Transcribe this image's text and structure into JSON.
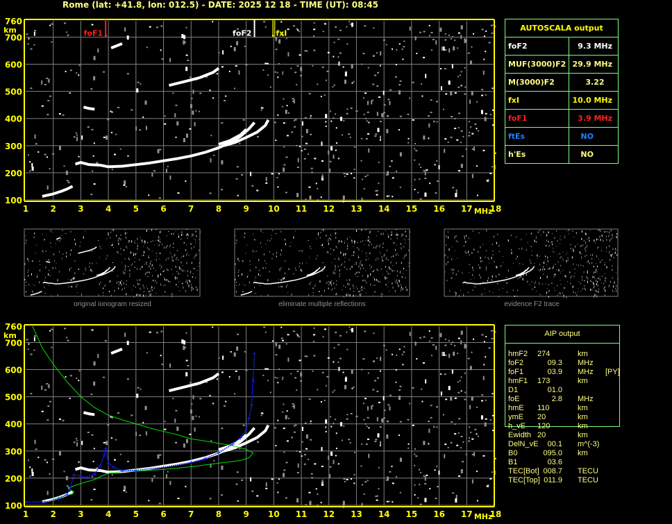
{
  "header": {
    "title": "Rome (lat: +41.8, lon: 012.5) - DATE: 2025 12 18 - TIME (UT): 08:45"
  },
  "autoscala": {
    "title": "AUTOSCALA output",
    "rows": [
      {
        "label": "foF2",
        "value": "9.3 MHz",
        "color": "#ffffff"
      },
      {
        "label": "MUF(3000)F2",
        "value": "29.9 MHz",
        "color": "#ffff80"
      },
      {
        "label": "M(3000)F2",
        "value": "3.22",
        "color": "#ffff80"
      },
      {
        "label": "fxI",
        "value": "10.0 MHz",
        "color": "#ffff00"
      },
      {
        "label": "foF1",
        "value": "3.9 MHz",
        "color": "#ff2020"
      },
      {
        "label": "ftEs",
        "value": "NO",
        "color": "#1e7fff",
        "value_color": "#1e7fff"
      },
      {
        "label": "h'Es",
        "value": "NO",
        "color": "#ffff80"
      }
    ]
  },
  "aip": {
    "title": "AIP output",
    "rows": [
      {
        "name": "hmF2",
        "value": "274",
        "unit": "km",
        "note": ""
      },
      {
        "name": "foF2",
        "value": "09.3",
        "unit": "MHz",
        "note": ""
      },
      {
        "name": "foF1",
        "value": "03.9",
        "unit": "MHz",
        "note": "[PY]"
      },
      {
        "name": "hmF1",
        "value": "173",
        "unit": "km",
        "note": ""
      },
      {
        "name": "D1",
        "value": "01.0",
        "unit": "",
        "note": ""
      },
      {
        "name": "foE",
        "value": "2.8",
        "unit": "MHz",
        "note": ""
      },
      {
        "name": "hmE",
        "value": "110",
        "unit": "km",
        "note": ""
      },
      {
        "name": "ymE",
        "value": "20",
        "unit": "km",
        "note": ""
      },
      {
        "name": "h_vE",
        "value": "120",
        "unit": "km",
        "note": ""
      },
      {
        "name": "Ewidth",
        "value": "20",
        "unit": "km",
        "note": ""
      },
      {
        "name": "DelN_vE",
        "value": "00.1",
        "unit": "m^(-3)",
        "note": ""
      },
      {
        "name": "B0",
        "value": "095.0",
        "unit": "km",
        "note": ""
      },
      {
        "name": "B1",
        "value": "03.6",
        "unit": "",
        "note": ""
      },
      {
        "name": "TEC[Bot]",
        "value": "008.7",
        "unit": "TECU",
        "note": ""
      },
      {
        "name": "TEC[Top]",
        "value": "011.9",
        "unit": "TECU",
        "note": ""
      }
    ]
  },
  "thumbnails": [
    {
      "label": "original ionogram resized"
    },
    {
      "label": "eliminate multiple reflections"
    },
    {
      "label": "evidence F2 trace"
    }
  ],
  "chart_data": [
    {
      "type": "scatter",
      "title": "",
      "xlabel": "MHz",
      "ylabel": "km",
      "xlim": [
        1,
        18
      ],
      "ylim": [
        100,
        760
      ],
      "x_ticks": [
        1,
        2,
        3,
        4,
        5,
        6,
        7,
        8,
        9,
        10,
        11,
        12,
        13,
        14,
        15,
        16,
        17,
        18
      ],
      "y_ticks": [
        760,
        700,
        600,
        500,
        400,
        300,
        200,
        100
      ],
      "grid": true,
      "markers": [
        {
          "label": "foF1",
          "freq": 3.9,
          "color": "#ff2020"
        },
        {
          "label": "foF2",
          "freq": 9.3,
          "color": "#ffffff"
        },
        {
          "label": "fxI",
          "freq": 10.0,
          "color": "#ffff00"
        }
      ],
      "traces": [
        {
          "kind": "E",
          "points": [
            [
              1.6,
              113
            ],
            [
              2.0,
              122
            ],
            [
              2.3,
              132
            ],
            [
              2.5,
              140
            ],
            [
              2.7,
              150
            ]
          ]
        },
        {
          "kind": "F-ordinary",
          "points": [
            [
              2.8,
              232
            ],
            [
              3.0,
              238
            ],
            [
              3.3,
              230
            ],
            [
              3.7,
              228
            ],
            [
              4.0,
              222
            ],
            [
              4.5,
              224
            ],
            [
              5,
              230
            ],
            [
              5.5,
              236
            ],
            [
              6,
              244
            ],
            [
              6.5,
              252
            ],
            [
              7,
              262
            ],
            [
              7.5,
              275
            ],
            [
              8,
              292
            ],
            [
              8.5,
              315
            ],
            [
              8.8,
              335
            ],
            [
              9.1,
              362
            ],
            [
              9.3,
              385
            ]
          ]
        },
        {
          "kind": "F-extraordinary",
          "points": [
            [
              8.2,
              300
            ],
            [
              8.6,
              312
            ],
            [
              9.0,
              330
            ],
            [
              9.4,
              350
            ],
            [
              9.7,
              375
            ],
            [
              9.8,
              395
            ]
          ]
        },
        {
          "kind": "F-second",
          "points": [
            [
              8.0,
              305
            ],
            [
              8.4,
              318
            ],
            [
              8.8,
              340
            ],
            [
              9.0,
              360
            ]
          ]
        },
        {
          "kind": "multiple",
          "points": [
            [
              6.2,
              522
            ],
            [
              6.8,
              537
            ],
            [
              7.3,
              550
            ],
            [
              7.8,
              570
            ],
            [
              8.0,
              585
            ]
          ]
        },
        {
          "kind": "multiple",
          "points": [
            [
              4.1,
              660
            ],
            [
              4.3,
              668
            ],
            [
              4.5,
              676
            ]
          ]
        },
        {
          "kind": "multiple",
          "points": [
            [
              3.1,
              442
            ],
            [
              3.3,
              437
            ],
            [
              3.5,
              434
            ]
          ]
        }
      ],
      "true_height_profile": [
        [
          1,
          112
        ],
        [
          1.7,
          112
        ],
        [
          2.2,
          124
        ],
        [
          2.5,
          140
        ],
        [
          2.6,
          160
        ],
        [
          2.75,
          212
        ],
        [
          3.0,
          208
        ],
        [
          3.2,
          202
        ],
        [
          3.5,
          215
        ],
        [
          3.7,
          245
        ],
        [
          3.85,
          285
        ],
        [
          3.9,
          310
        ],
        [
          4.0,
          255
        ],
        [
          4.2,
          240
        ],
        [
          4.5,
          228
        ],
        [
          5,
          229
        ],
        [
          6,
          240
        ],
        [
          7,
          258
        ],
        [
          7.5,
          272
        ],
        [
          8,
          293
        ],
        [
          8.5,
          325
        ],
        [
          8.8,
          350
        ],
        [
          9.0,
          380
        ],
        [
          9.1,
          420
        ],
        [
          9.2,
          470
        ],
        [
          9.25,
          560
        ],
        [
          9.3,
          660
        ]
      ],
      "model_profile": [
        [
          1.25,
          760
        ],
        [
          1.6,
          680
        ],
        [
          2.0,
          620
        ],
        [
          2.5,
          555
        ],
        [
          3.0,
          500
        ],
        [
          3.5,
          460
        ],
        [
          4.0,
          432
        ],
        [
          4.5,
          415
        ],
        [
          5.0,
          400
        ],
        [
          5.5,
          385
        ],
        [
          6.0,
          372
        ],
        [
          6.5,
          360
        ],
        [
          7.0,
          345
        ],
        [
          7.5,
          337
        ],
        [
          8.0,
          328
        ],
        [
          8.5,
          320
        ],
        [
          9.0,
          306
        ],
        [
          9.25,
          293
        ],
        [
          9.1,
          275
        ],
        [
          8.8,
          265
        ],
        [
          8.0,
          255
        ],
        [
          7.0,
          242
        ],
        [
          6.0,
          232
        ],
        [
          5.0,
          226
        ],
        [
          4.5,
          224
        ],
        [
          4.0,
          218
        ],
        [
          3.8,
          210
        ],
        [
          3.5,
          195
        ],
        [
          3.0,
          180
        ],
        [
          2.7,
          170
        ],
        [
          2.55,
          160
        ],
        [
          2.75,
          150
        ],
        [
          2.7,
          142
        ],
        [
          2.3,
          132
        ],
        [
          2.0,
          122
        ],
        [
          1.9,
          115
        ]
      ]
    }
  ]
}
